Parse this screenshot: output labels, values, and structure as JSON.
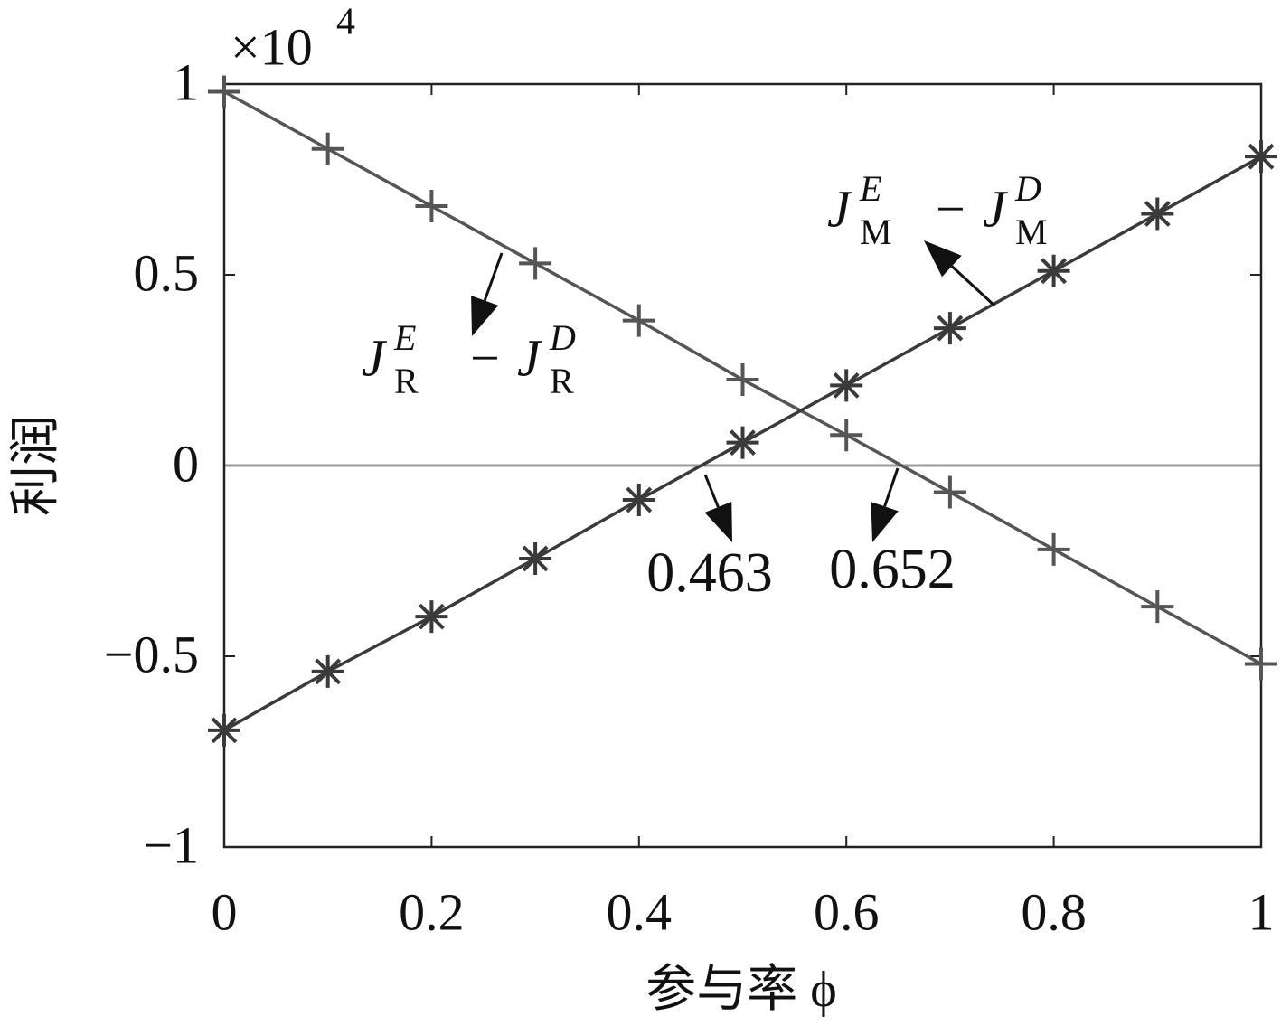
{
  "chart_data": {
    "type": "line",
    "xlabel": "参与率 ϕ",
    "ylabel": "利润",
    "y_multiplier": {
      "base": "×10",
      "exponent": "4"
    },
    "x": [
      0,
      0.1,
      0.2,
      0.3,
      0.4,
      0.5,
      0.6,
      0.7,
      0.8,
      0.9,
      1
    ],
    "series": [
      {
        "label": [
          [
            "J",
            "E",
            "R"
          ],
          "−",
          [
            "J",
            "D",
            "R"
          ]
        ],
        "color": "#555555",
        "marker": "plus",
        "values": [
          0.98,
          0.83,
          0.68,
          0.53,
          0.38,
          0.225,
          0.08,
          -0.07,
          -0.22,
          -0.37,
          -0.52
        ]
      },
      {
        "label": [
          [
            "J",
            "E",
            "M"
          ],
          "−",
          [
            "J",
            "D",
            "M"
          ]
        ],
        "color": "#3a3a3a",
        "marker": "asterisk",
        "values": [
          -0.694,
          -0.54,
          -0.396,
          -0.244,
          -0.09,
          0.06,
          0.21,
          0.36,
          0.51,
          0.66,
          0.81
        ]
      }
    ],
    "annotations": [
      {
        "label": "0.463"
      },
      {
        "label": "0.652"
      }
    ],
    "xlim": [
      0,
      1
    ],
    "xticks": [
      0,
      0.2,
      0.4,
      0.6,
      0.8,
      1
    ],
    "ylim": [
      -1,
      1
    ],
    "yticks": [
      {
        "value": -1,
        "label": "−1"
      },
      {
        "value": -0.5,
        "label": "−0.5"
      },
      0,
      0.5,
      1
    ],
    "zero_line": true
  }
}
